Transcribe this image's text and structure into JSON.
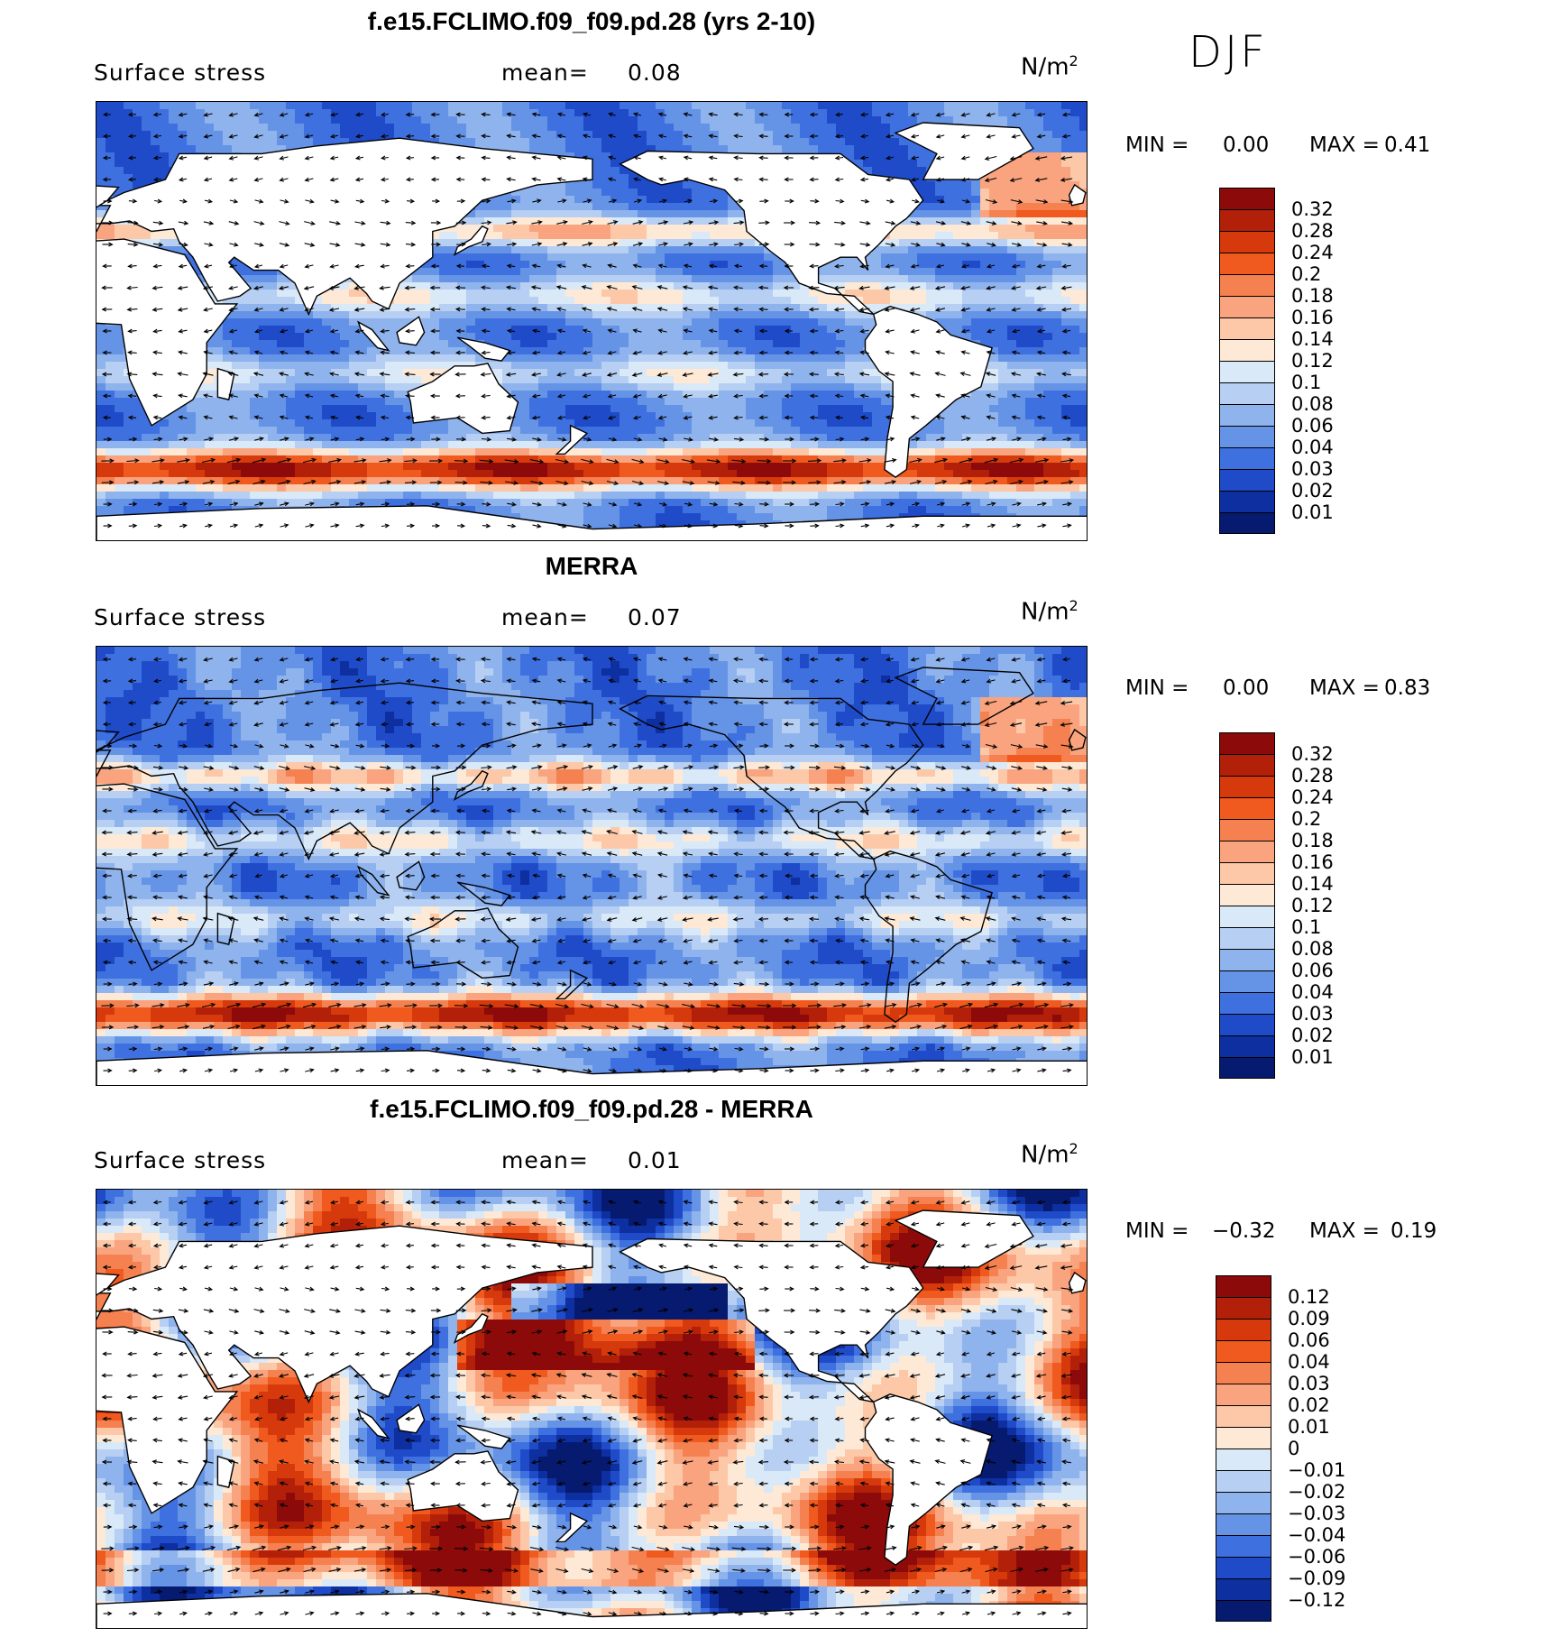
{
  "season": "DJF",
  "panels": [
    {
      "title": "f.e15.FCLIMO.f09_f09.pd.28 (yrs 2-10)",
      "variable": "Surface stress",
      "mean_label": "mean=",
      "mean_value": "0.08",
      "units_base": "N/m",
      "units_exp": "2",
      "min_label": "MIN =",
      "min_value": "0.00",
      "max_label": "MAX =",
      "max_value": "0.41",
      "levels": [
        "0.32",
        "0.28",
        "0.24",
        "0.2",
        "0.18",
        "0.16",
        "0.14",
        "0.12",
        "0.1",
        "0.08",
        "0.06",
        "0.04",
        "0.03",
        "0.02",
        "0.01"
      ],
      "colors": [
        "#8c0a0a",
        "#b2200a",
        "#d63a0c",
        "#f05a1e",
        "#f58150",
        "#f9a47f",
        "#fcc8a8",
        "#fde9d6",
        "#d9e9f8",
        "#b6cff2",
        "#8fb3ec",
        "#6593e6",
        "#3f70e0",
        "#1f4bc8",
        "#0d2fa0",
        "#061a70"
      ]
    },
    {
      "title": "MERRA",
      "variable": "Surface stress",
      "mean_label": "mean=",
      "mean_value": "0.07",
      "units_base": "N/m",
      "units_exp": "2",
      "min_label": "MIN =",
      "min_value": "0.00",
      "max_label": "MAX =",
      "max_value": "0.83",
      "levels": [
        "0.32",
        "0.28",
        "0.24",
        "0.2",
        "0.18",
        "0.16",
        "0.14",
        "0.12",
        "0.1",
        "0.08",
        "0.06",
        "0.04",
        "0.03",
        "0.02",
        "0.01"
      ],
      "colors": [
        "#8c0a0a",
        "#b2200a",
        "#d63a0c",
        "#f05a1e",
        "#f58150",
        "#f9a47f",
        "#fcc8a8",
        "#fde9d6",
        "#d9e9f8",
        "#b6cff2",
        "#8fb3ec",
        "#6593e6",
        "#3f70e0",
        "#1f4bc8",
        "#0d2fa0",
        "#061a70"
      ]
    },
    {
      "title": "f.e15.FCLIMO.f09_f09.pd.28 - MERRA",
      "variable": "Surface stress",
      "mean_label": "mean=",
      "mean_value": "0.01",
      "units_base": "N/m",
      "units_exp": "2",
      "min_label": "MIN =",
      "min_value": "−0.32",
      "max_label": "MAX =",
      "max_value": "0.19",
      "levels": [
        "0.12",
        "0.09",
        "0.06",
        "0.04",
        "0.03",
        "0.02",
        "0.01",
        "0",
        "−0.01",
        "−0.02",
        "−0.03",
        "−0.04",
        "−0.06",
        "−0.09",
        "−0.12"
      ],
      "colors": [
        "#8c0a0a",
        "#b2200a",
        "#d63a0c",
        "#f05a1e",
        "#f58150",
        "#f9a47f",
        "#fcc8a8",
        "#fde9d6",
        "#d9e9f8",
        "#b6cff2",
        "#8fb3ec",
        "#6593e6",
        "#3f70e0",
        "#1f4bc8",
        "#0d2fa0",
        "#061a70"
      ]
    }
  ]
}
